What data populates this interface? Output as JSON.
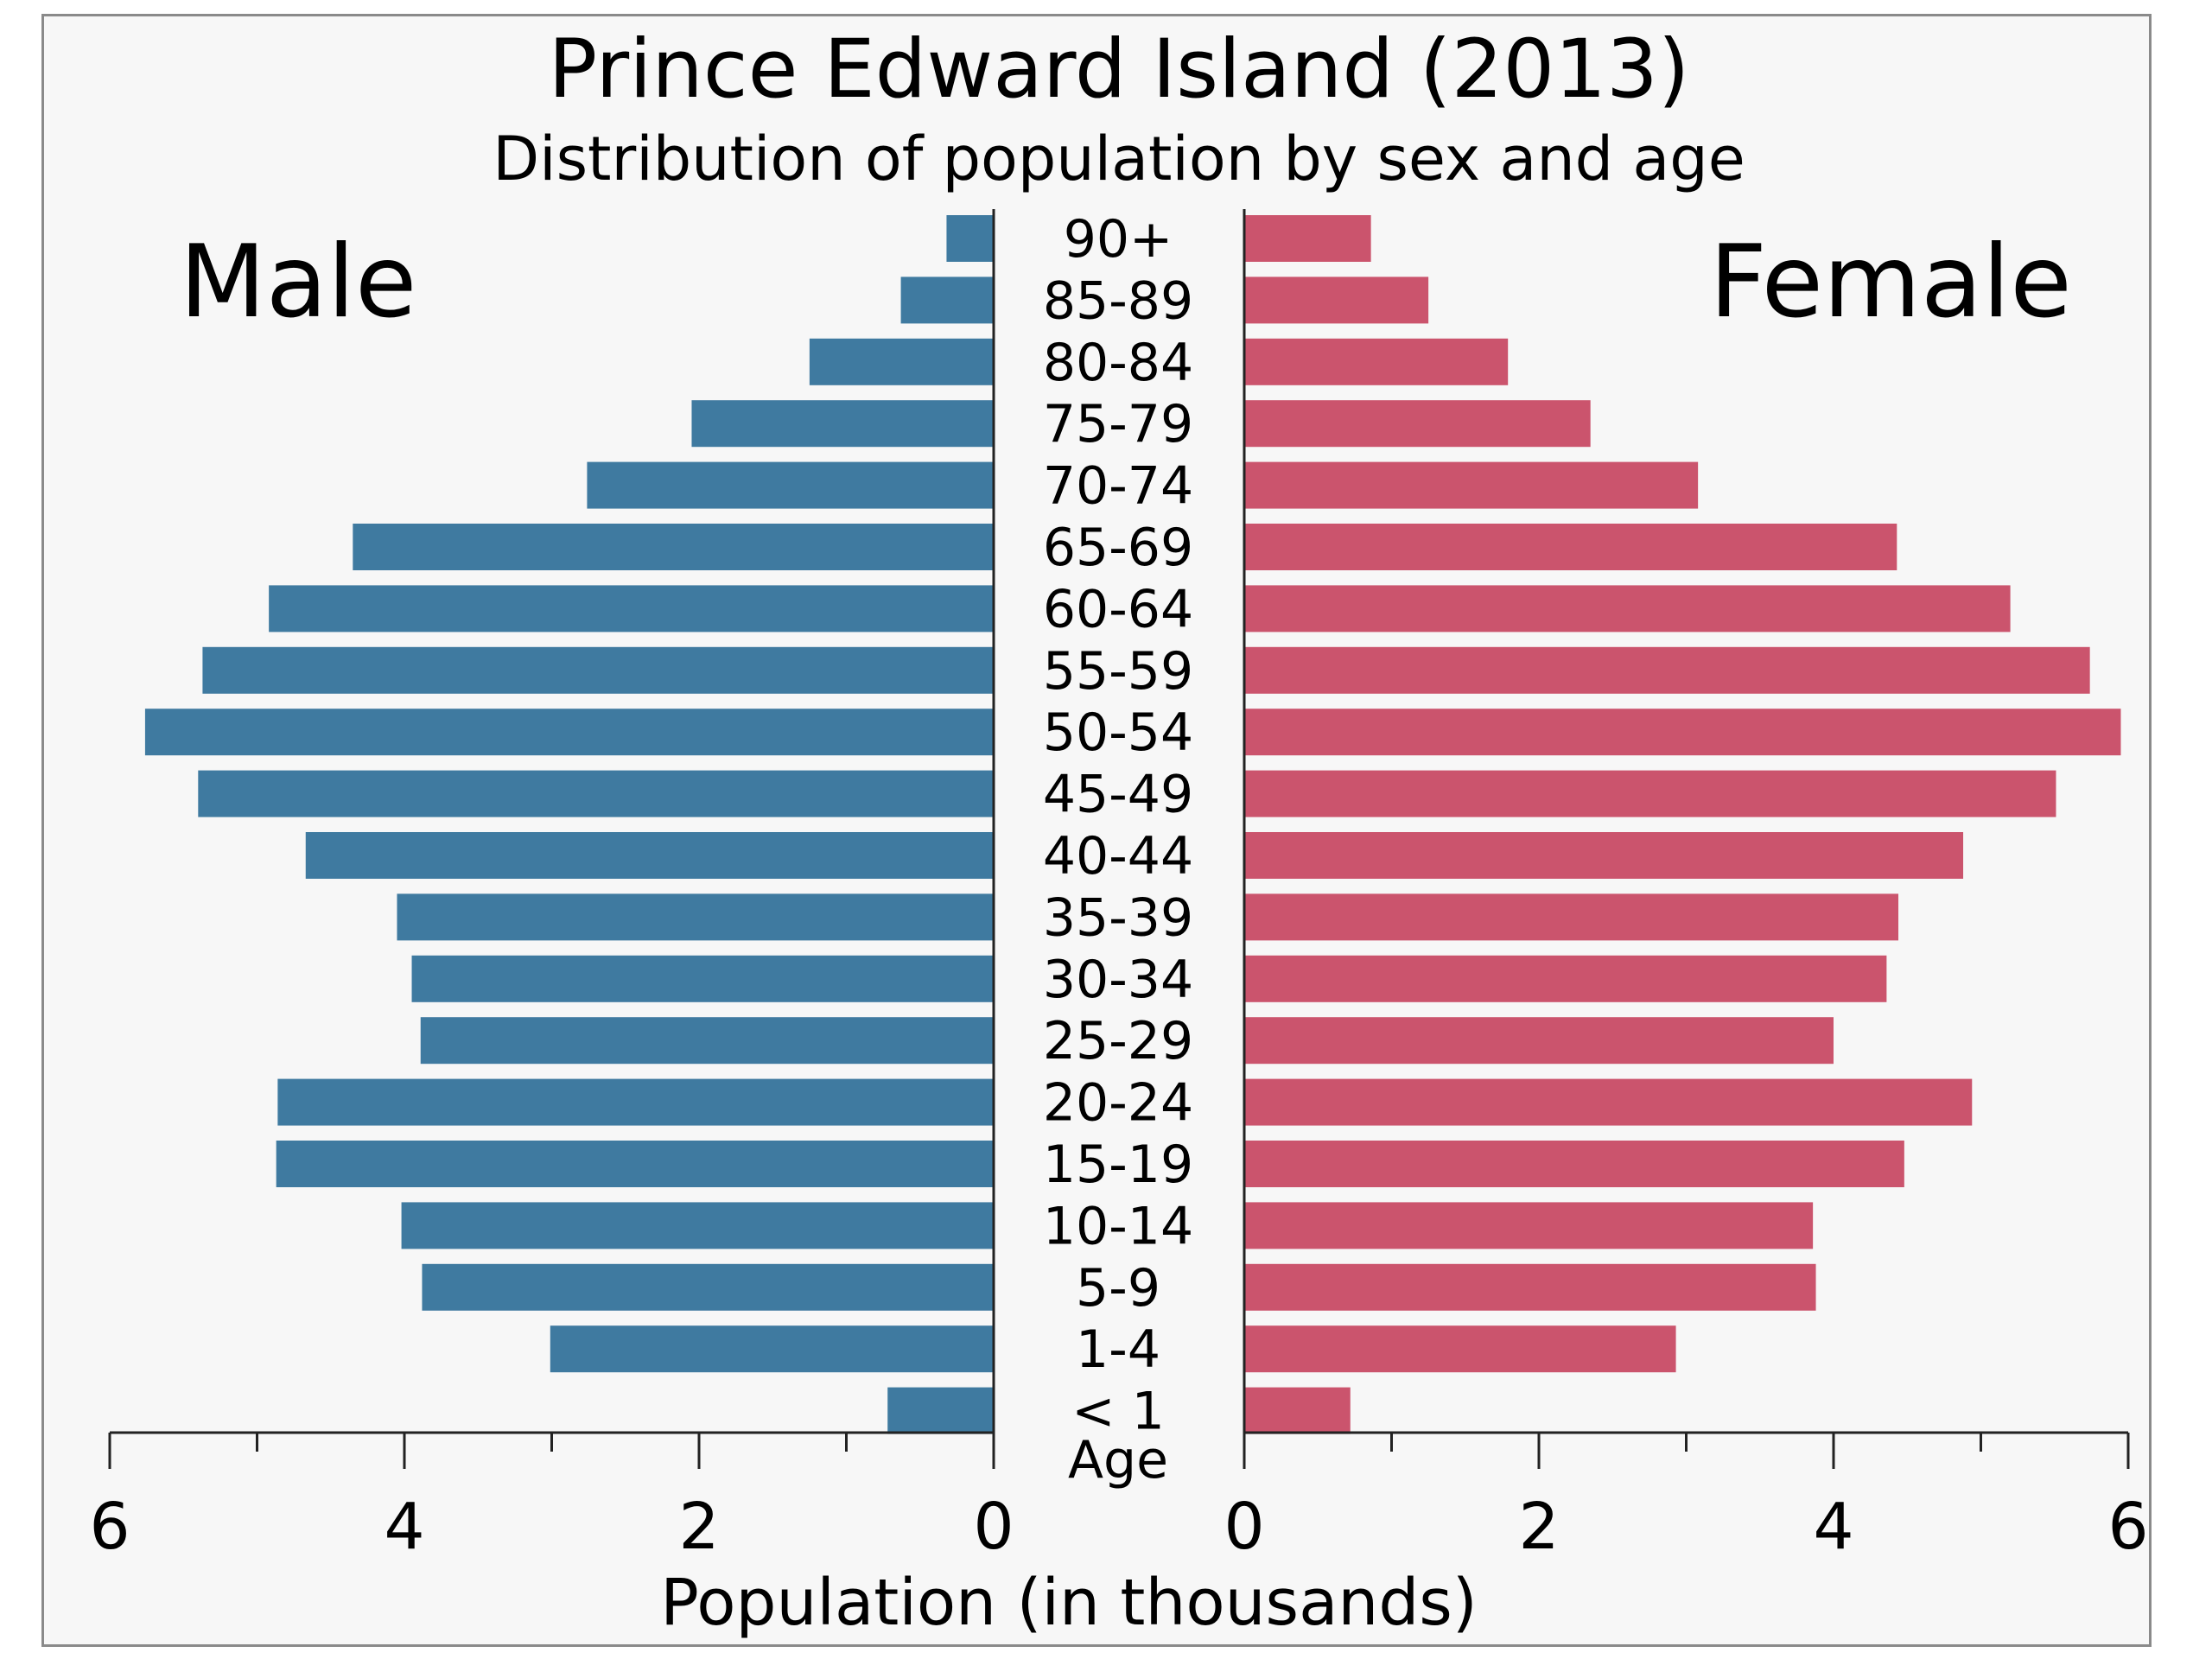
{
  "chart_data": {
    "type": "bar",
    "title": "Prince Edward Island (2013)",
    "subtitle": "Distribution of population by sex and age",
    "xlabel": "Population (in thousands)",
    "ylabel": "Age",
    "xlim": [
      0,
      6
    ],
    "x_ticks": [
      "6",
      "4",
      "2",
      "0",
      "0",
      "2",
      "4",
      "6"
    ],
    "grid": false,
    "categories": [
      "90+",
      "85-89",
      "80-84",
      "75-79",
      "70-74",
      "65-69",
      "60-64",
      "55-59",
      "50-54",
      "45-49",
      "40-44",
      "35-39",
      "30-34",
      "25-29",
      "20-24",
      "15-19",
      "10-14",
      "5-9",
      "1-4",
      "< 1"
    ],
    "series": [
      {
        "name": "Male",
        "color": "#3f7aa0",
        "values": [
          0.32,
          0.63,
          1.25,
          2.05,
          2.76,
          4.35,
          4.92,
          5.37,
          5.76,
          5.4,
          4.67,
          4.05,
          3.95,
          3.89,
          4.86,
          4.87,
          4.02,
          3.88,
          3.01,
          0.72
        ]
      },
      {
        "name": "Female",
        "color": "#cb546d",
        "values": [
          0.86,
          1.25,
          1.79,
          2.35,
          3.08,
          4.43,
          5.2,
          5.74,
          5.95,
          5.51,
          4.88,
          4.44,
          4.36,
          4.0,
          4.94,
          4.48,
          3.86,
          3.88,
          2.93,
          0.72
        ]
      }
    ],
    "legend": [
      "Male",
      "Female"
    ]
  }
}
